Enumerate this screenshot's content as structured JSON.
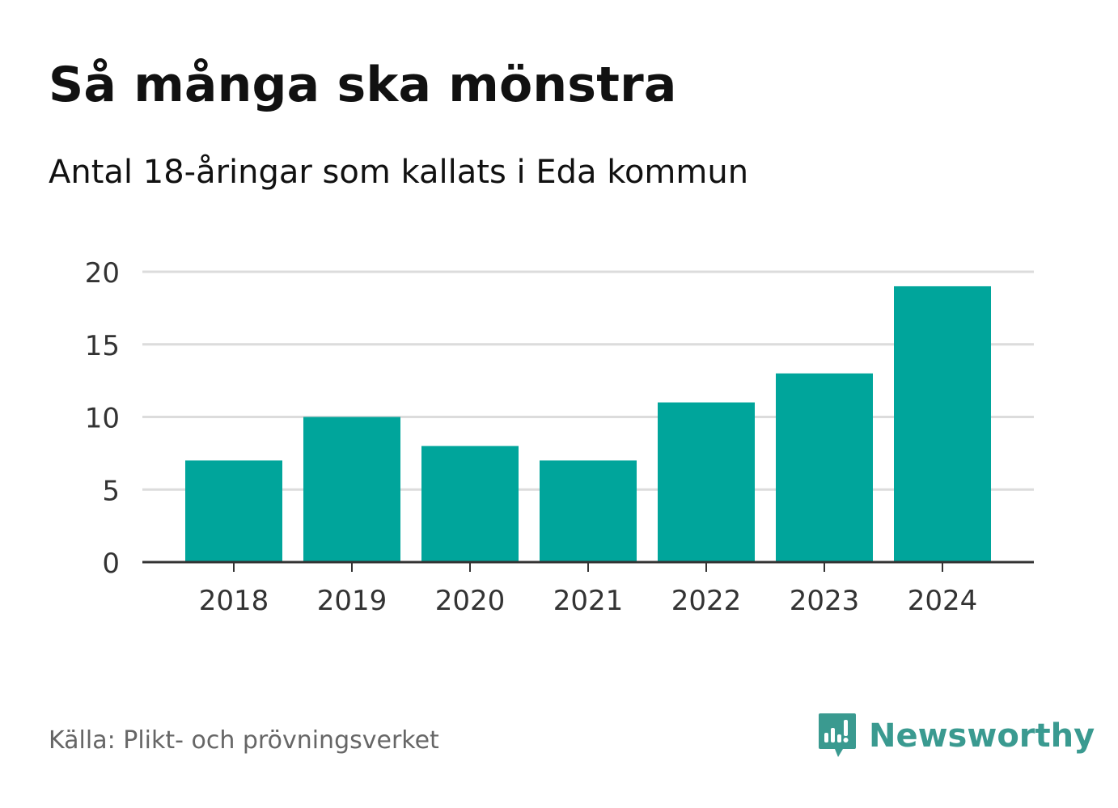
{
  "chart_data": {
    "type": "bar",
    "title": "Så många ska mönstra",
    "subtitle": "Antal 18-åringar som kallats i Eda kommun",
    "categories": [
      "2018",
      "2019",
      "2020",
      "2021",
      "2022",
      "2023",
      "2024"
    ],
    "values": [
      7,
      10,
      8,
      7,
      11,
      13,
      19
    ],
    "y_ticks": [
      0,
      5,
      10,
      15,
      20
    ],
    "ylim": [
      0,
      20
    ],
    "xlabel": "",
    "ylabel": "",
    "grid": true,
    "bar_color": "#00a59b",
    "source": "Källa: Plikt- och prövningsverket"
  },
  "brand": {
    "name": "Newsworthy",
    "logo_icon": "newsworthy-logo-icon",
    "color": "#3a9a90"
  }
}
